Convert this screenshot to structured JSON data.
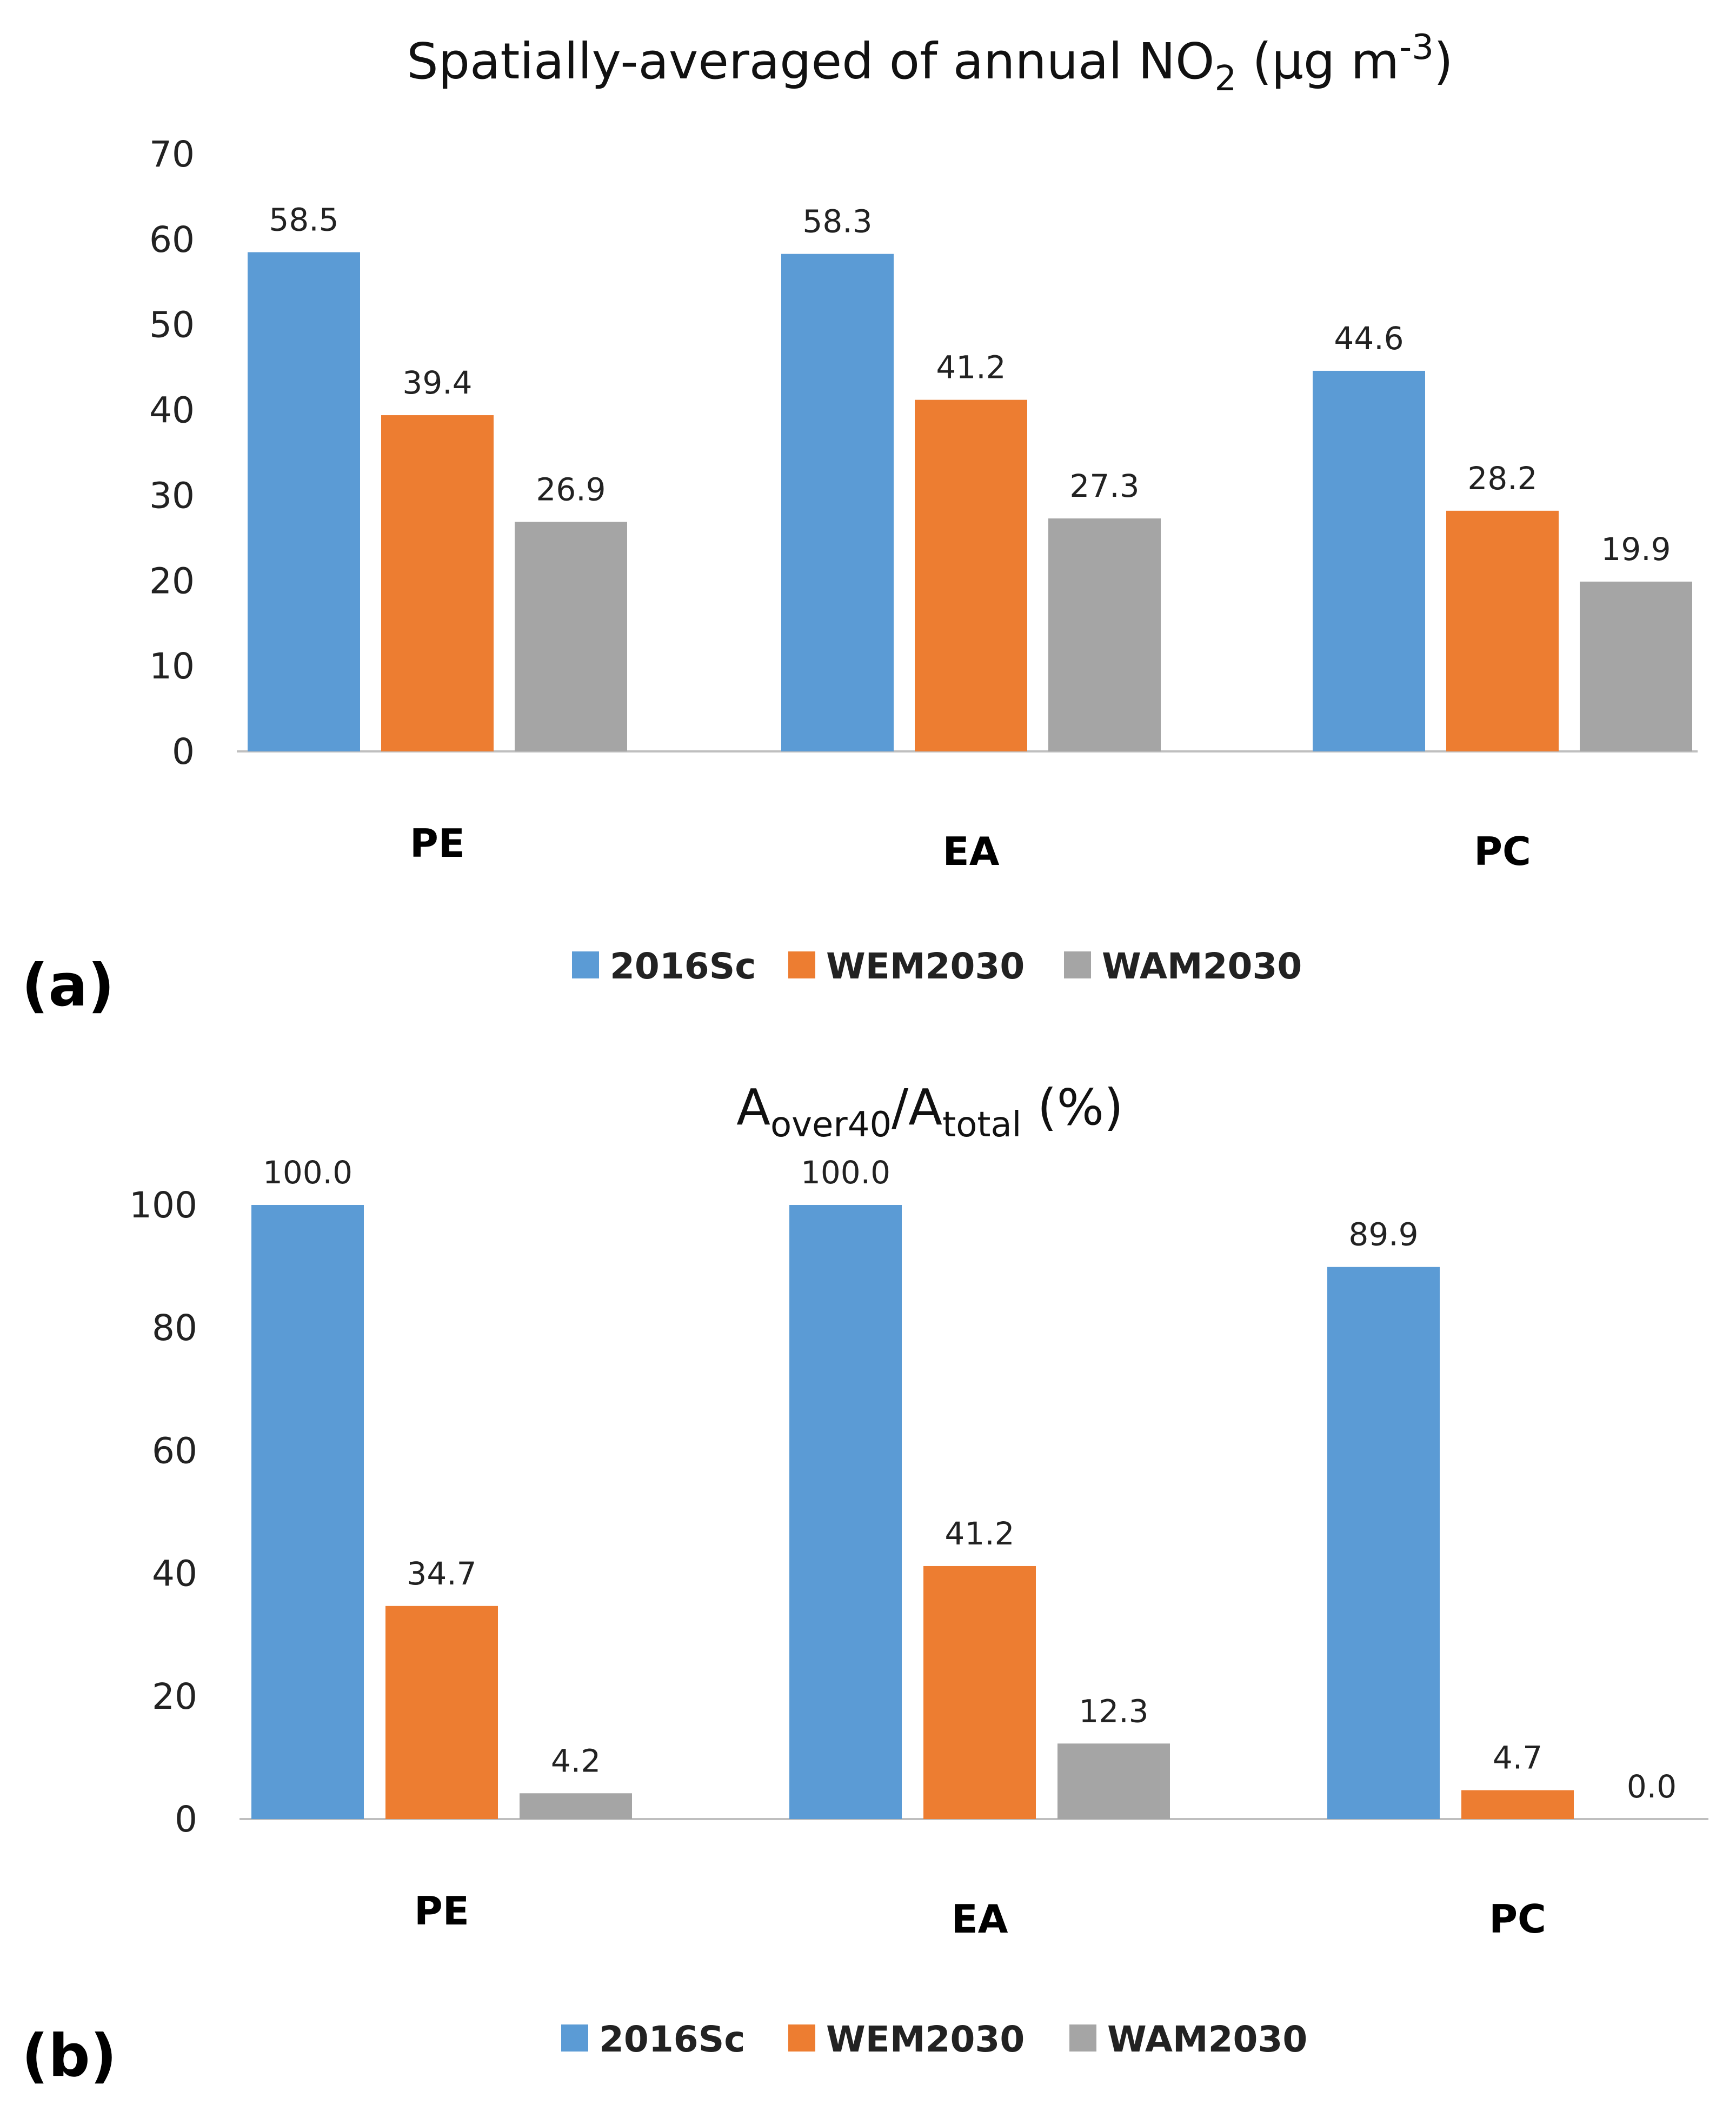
{
  "chart_data": [
    {
      "type": "bar",
      "panel_label": "(a)",
      "title": {
        "main": "Spatially-averaged of annual NO",
        "sub": "2",
        "tail": " (µg m",
        "sup": "-3",
        "end": ")"
      },
      "categories": [
        "PE",
        "EA",
        "PC"
      ],
      "series": [
        {
          "name": "2016Sc",
          "color": "#5b9bd5",
          "values": [
            58.5,
            58.3,
            44.6
          ]
        },
        {
          "name": "WEM2030",
          "color": "#ed7d31",
          "values": [
            39.4,
            41.2,
            28.2
          ]
        },
        {
          "name": "WAM2030",
          "color": "#a5a5a5",
          "values": [
            26.9,
            27.3,
            19.9
          ]
        }
      ],
      "value_labels": [
        [
          "58.5",
          "58.3",
          "44.6"
        ],
        [
          "39.4",
          "41.2",
          "28.2"
        ],
        [
          "26.9",
          "27.3",
          "19.9"
        ]
      ],
      "ylim": [
        0,
        70
      ],
      "yticks": [
        0,
        10,
        20,
        30,
        40,
        50,
        60,
        70
      ],
      "grid": false,
      "legend_position": "bottom"
    },
    {
      "type": "bar",
      "panel_label": "(b)",
      "title": {
        "main": "A",
        "sub1": "over40",
        "mid": "/A",
        "sub2": "total",
        "end": " (%)"
      },
      "categories": [
        "PE",
        "EA",
        "PC"
      ],
      "series": [
        {
          "name": "2016Sc",
          "color": "#5b9bd5",
          "values": [
            100.0,
            100.0,
            89.9
          ]
        },
        {
          "name": "WEM2030",
          "color": "#ed7d31",
          "values": [
            34.7,
            41.2,
            4.7
          ]
        },
        {
          "name": "WAM2030",
          "color": "#a5a5a5",
          "values": [
            4.2,
            12.3,
            0.0
          ]
        }
      ],
      "value_labels": [
        [
          "100.0",
          "100.0",
          "89.9"
        ],
        [
          "34.7",
          "41.2",
          "4.7"
        ],
        [
          "4.2",
          "12.3",
          "0.0"
        ]
      ],
      "ylim": [
        0,
        100
      ],
      "yticks": [
        0,
        20,
        40,
        60,
        80,
        100
      ],
      "grid": false,
      "legend_position": "bottom"
    }
  ]
}
